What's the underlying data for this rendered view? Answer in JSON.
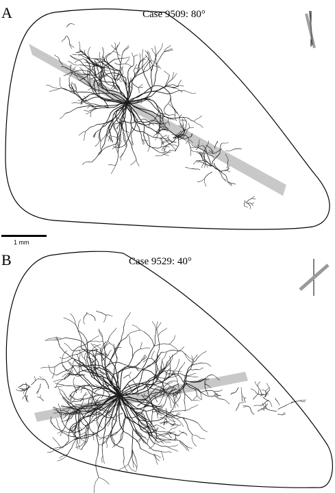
{
  "figure": {
    "panels": [
      {
        "letter": "A",
        "case_title": "Case 9509: 80°",
        "angle_deg": 80
      },
      {
        "letter": "B",
        "case_title": "Case 9529: 40°",
        "angle_deg": 40
      }
    ],
    "scale_bar": {
      "label": "1 mm"
    },
    "colors": {
      "outline": "#000000",
      "band": "#c8c8c8",
      "arbor": "#1a1a1a",
      "background": "#ffffff"
    }
  }
}
